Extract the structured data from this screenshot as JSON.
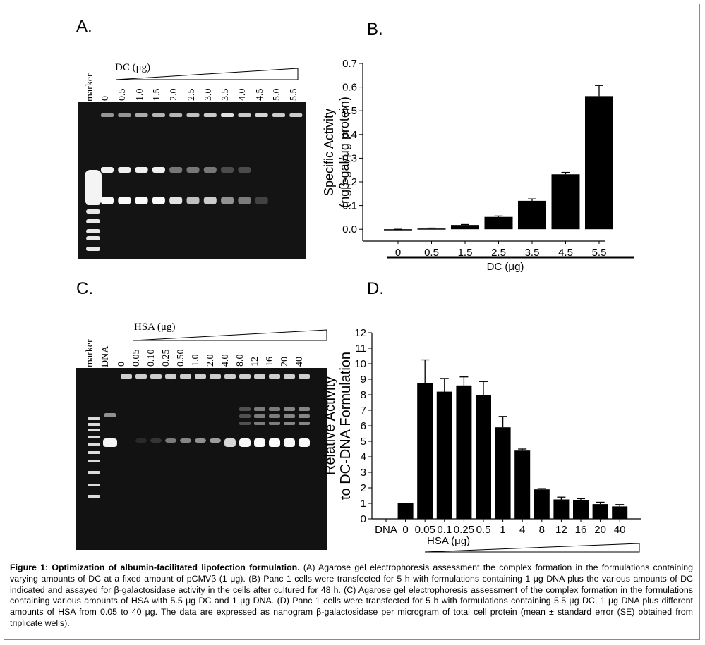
{
  "panels": {
    "a_label": "A.",
    "b_label": "B.",
    "c_label": "C.",
    "d_label": "D."
  },
  "gel_a": {
    "marker_label": "marker",
    "title": "DC (μg)",
    "lanes": [
      "0",
      "0.5",
      "1.0",
      "1.5",
      "2.0",
      "2.5",
      "3.0",
      "3.5",
      "4.0",
      "4.5",
      "5.0",
      "5.5"
    ]
  },
  "gel_c": {
    "marker_label": "marker",
    "dna_label": "DNA",
    "title": "HSA (μg)",
    "lanes": [
      "0",
      "0.05",
      "0.10",
      "0.25",
      "0.50",
      "1.0",
      "2.0",
      "4.0",
      "8.0",
      "12",
      "16",
      "20",
      "40"
    ]
  },
  "chart_data": [
    {
      "type": "bar",
      "panel": "B",
      "ylabel_line1": "Specific Activity",
      "ylabel_line2": "(ngβ-gal/μg protein)",
      "xlabel": "DC (μg)",
      "categories": [
        "0",
        "0.5",
        "1.5",
        "2.5",
        "3.5",
        "4.5",
        "5.5"
      ],
      "values": [
        -0.002,
        0.003,
        0.018,
        0.052,
        0.12,
        0.232,
        0.562
      ],
      "errors": [
        0.002,
        0.002,
        0.002,
        0.004,
        0.008,
        0.008,
        0.045
      ],
      "ylim": [
        -0.05,
        0.7
      ],
      "yticks": [
        "0.0",
        "0.1",
        "0.2",
        "0.3",
        "0.4",
        "0.5",
        "0.6",
        "0.7"
      ],
      "grid": false,
      "bar_color": "#000000"
    },
    {
      "type": "bar",
      "panel": "D",
      "ylabel_line1": "Relative Activity",
      "ylabel_line2": "to DC-DNA Formulation",
      "xlabel": "HSA (μg)",
      "categories": [
        "DNA",
        "0",
        "0.05",
        "0.1",
        "0.25",
        "0.5",
        "1",
        "4",
        "8",
        "12",
        "16",
        "20",
        "40"
      ],
      "values": [
        0,
        1.0,
        8.75,
        8.2,
        8.6,
        8.0,
        5.9,
        4.4,
        1.9,
        1.25,
        1.2,
        0.95,
        0.8
      ],
      "errors": [
        0,
        0,
        1.5,
        0.85,
        0.55,
        0.85,
        0.7,
        0.1,
        0.05,
        0.15,
        0.1,
        0.12,
        0.12
      ],
      "ylim": [
        0,
        12
      ],
      "yticks": [
        "0",
        "1",
        "2",
        "3",
        "4",
        "5",
        "6",
        "7",
        "8",
        "9",
        "10",
        "11",
        "12"
      ],
      "grid": false,
      "bar_color": "#000000"
    }
  ],
  "caption": {
    "bold_lead": "Figure 1: Optimization of albumin-facilitated lipofection formulation.",
    "body": "(A) Agarose gel electrophoresis assessment the complex formation in the formulations containing varying amounts of DC at a fixed amount of pCMVβ (1 μg). (B) Panc 1 cells were transfected for 5 h with formulations containing 1 μg DNA plus the various amounts of DC indicated and assayed for β-galactosidase activity in the cells after cultured for 48 h. (C) Agarose gel electrophoresis assessment of the complex formation in the formulations containing various amounts of HSA with 5.5 μg DC and 1 μg DNA. (D) Panc 1 cells were transfected for 5 h with formulations containing 5.5 μg DC, 1 μg DNA plus different amounts of HSA from 0.05 to 40 μg. The data are expressed as nanogram β-galactosidase per microgram of total cell protein (mean ± standard error (SE) obtained from triplicate wells)."
  }
}
